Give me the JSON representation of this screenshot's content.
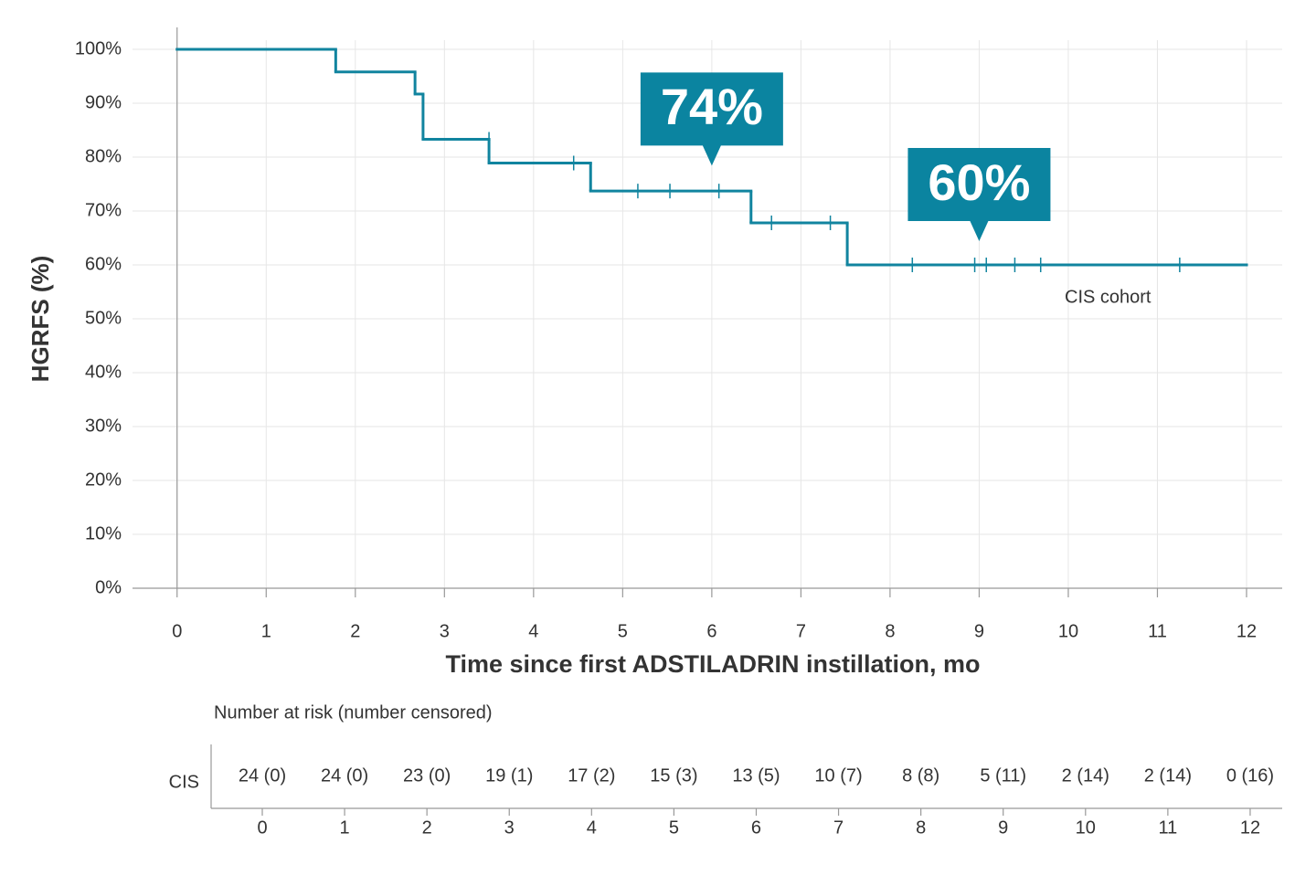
{
  "chart_data": {
    "type": "step",
    "y_label": "HGRFS (%)",
    "x_label": "Time since first ADSTILADRIN instillation, mo",
    "xlim": [
      -0.5,
      12.4
    ],
    "ylim": [
      0,
      100
    ],
    "xticks": [
      0,
      1,
      2,
      3,
      4,
      5,
      6,
      7,
      8,
      9,
      10,
      11,
      12
    ],
    "yticks": [
      {
        "value": 0,
        "label": "0%"
      },
      {
        "value": 10,
        "label": "10%"
      },
      {
        "value": 20,
        "label": "20%"
      },
      {
        "value": 30,
        "label": "30%"
      },
      {
        "value": 40,
        "label": "40%"
      },
      {
        "value": 50,
        "label": "50%"
      },
      {
        "value": 60,
        "label": "60%"
      },
      {
        "value": 70,
        "label": "70%"
      },
      {
        "value": 80,
        "label": "80%"
      },
      {
        "value": 90,
        "label": "90%"
      },
      {
        "value": 100,
        "label": "100%"
      }
    ],
    "grid": true,
    "series": [
      {
        "name": "CIS cohort",
        "color": "#11849f",
        "x": [
          0,
          1.78,
          2.67,
          2.76,
          3.5,
          4.64,
          6.44,
          7.52,
          12
        ],
        "values": [
          100,
          95.8,
          91.7,
          83.3,
          78.9,
          73.7,
          67.8,
          60,
          60
        ]
      }
    ],
    "censored": {
      "x": [
        3.5,
        4.45,
        5.17,
        5.53,
        6.08,
        6.67,
        7.33,
        8.25,
        8.95,
        9.08,
        9.4,
        9.69,
        11.25
      ],
      "values": [
        83.3,
        78.9,
        73.7,
        73.7,
        73.7,
        67.8,
        67.8,
        60,
        60,
        60,
        60,
        60,
        60
      ]
    },
    "annotations": [
      {
        "label": "74%",
        "x": 6,
        "y": 74
      },
      {
        "label": "60%",
        "x": 9,
        "y": 60
      }
    ],
    "annotation_color": "#0b84a0",
    "risk_table": {
      "title": "Number at risk (number censored)",
      "row_label": "CIS",
      "times": [
        0,
        1,
        2,
        3,
        4,
        5,
        6,
        7,
        8,
        9,
        10,
        11,
        12
      ],
      "entries": [
        "24 (0)",
        "24 (0)",
        "23 (0)",
        "19 (1)",
        "17 (2)",
        "15 (3)",
        "13 (5)",
        "10 (7)",
        "8 (8)",
        "5 (11)",
        "2 (14)",
        "2 (14)",
        "0 (16)"
      ]
    }
  }
}
